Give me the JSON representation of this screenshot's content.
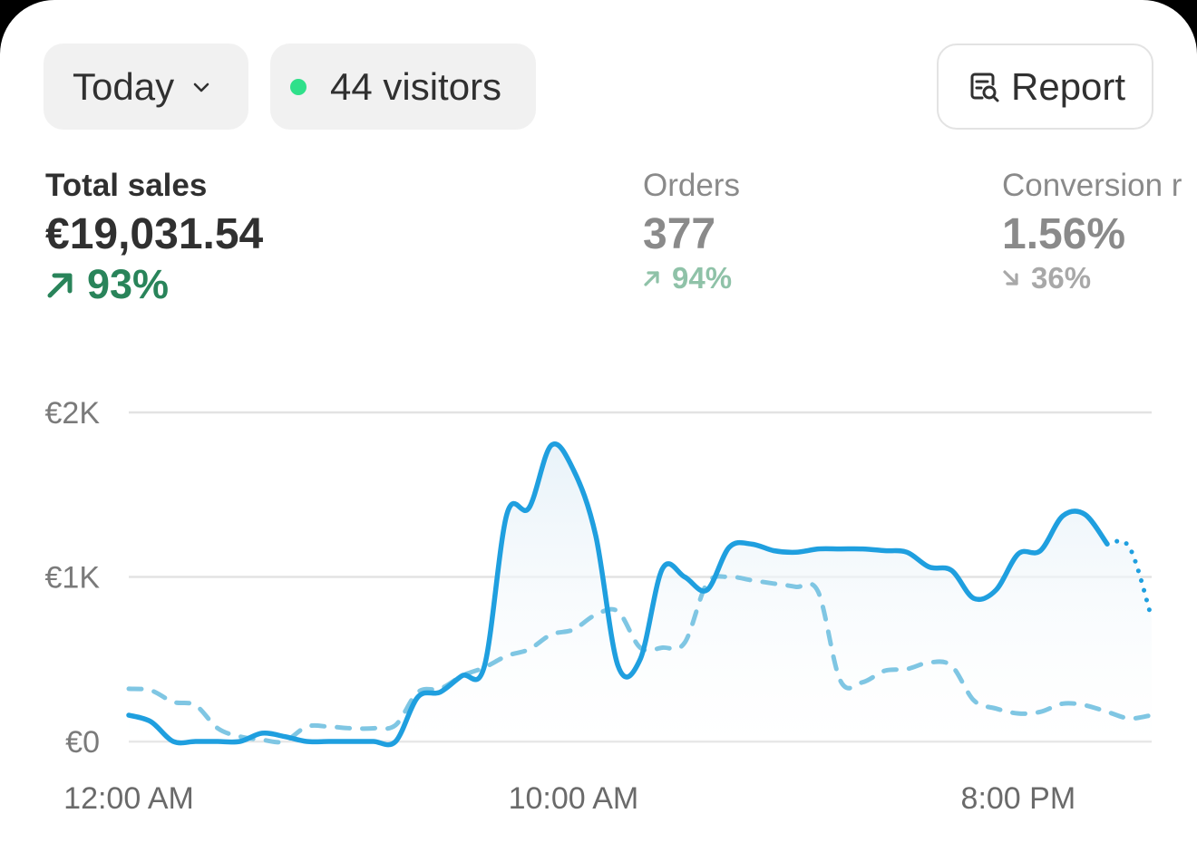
{
  "toolbar": {
    "date_range": {
      "label": "Today",
      "icon": "chevron-down-icon"
    },
    "visitors": {
      "label": "44 visitors",
      "status_color": "#2fe08a"
    },
    "report": {
      "label": "Report",
      "icon": "report-icon"
    }
  },
  "metrics": {
    "total_sales": {
      "label": "Total sales",
      "value": "€19,031.54",
      "change": "93%",
      "direction": "up",
      "color": "#29845a"
    },
    "orders": {
      "label": "Orders",
      "value": "377",
      "change": "94%",
      "direction": "up"
    },
    "conversion": {
      "label": "Conversion r",
      "value": "1.56%",
      "change": "36%",
      "direction": "down"
    }
  },
  "chart_data": {
    "type": "line",
    "title": "",
    "xlabel": "",
    "ylabel": "",
    "y_ticks": [
      "€0",
      "€1K",
      "€2K"
    ],
    "x_tick_labels": [
      "12:00 AM",
      "10:00 AM",
      "8:00 PM"
    ],
    "ylim": [
      0,
      2000
    ],
    "xlim": [
      0,
      23
    ],
    "grid": true,
    "legend": "none",
    "series": [
      {
        "style": "solid",
        "color": "#1f9fdf",
        "current_hour_index": 22,
        "x": [
          0,
          0.5,
          1,
          1.5,
          2,
          2.5,
          3,
          3.5,
          4,
          4.5,
          5,
          5.5,
          6,
          6.5,
          7,
          7.5,
          8,
          8.5,
          9,
          9.5,
          10,
          10.5,
          11,
          11.5,
          12,
          12.5,
          13,
          13.5,
          14,
          14.5,
          15,
          15.5,
          16,
          16.5,
          17,
          17.5,
          18,
          18.5,
          19,
          19.5,
          20,
          20.5,
          21,
          21.5,
          22,
          22.5,
          23
        ],
        "values": [
          160,
          120,
          0,
          0,
          0,
          0,
          50,
          30,
          0,
          0,
          0,
          0,
          0,
          270,
          300,
          400,
          460,
          1380,
          1420,
          1800,
          1650,
          1250,
          460,
          500,
          1050,
          1000,
          920,
          1180,
          1200,
          1160,
          1150,
          1170,
          1170,
          1170,
          1160,
          1150,
          1060,
          1040,
          870,
          920,
          1140,
          1160,
          1370,
          1380,
          1200,
          1180,
          750
        ]
      },
      {
        "style": "dashed",
        "color": "#7fc6e3",
        "x": [
          0,
          0.5,
          1,
          1.5,
          2,
          2.5,
          3,
          3.5,
          4,
          4.5,
          5,
          5.5,
          6,
          6.5,
          7,
          7.5,
          8,
          8.5,
          9,
          9.5,
          10,
          10.5,
          11,
          11.5,
          12,
          12.5,
          13,
          13.5,
          14,
          14.5,
          15,
          15.5,
          16,
          16.5,
          17,
          17.5,
          18,
          18.5,
          19,
          19.5,
          20,
          20.5,
          21,
          21.5,
          22,
          22.5,
          23
        ],
        "values": [
          320,
          310,
          240,
          220,
          80,
          30,
          10,
          0,
          90,
          90,
          80,
          80,
          100,
          300,
          320,
          400,
          450,
          520,
          560,
          650,
          680,
          770,
          790,
          570,
          570,
          600,
          960,
          1000,
          980,
          960,
          940,
          910,
          370,
          360,
          430,
          440,
          480,
          460,
          250,
          200,
          170,
          180,
          230,
          220,
          180,
          140,
          160
        ]
      }
    ]
  }
}
